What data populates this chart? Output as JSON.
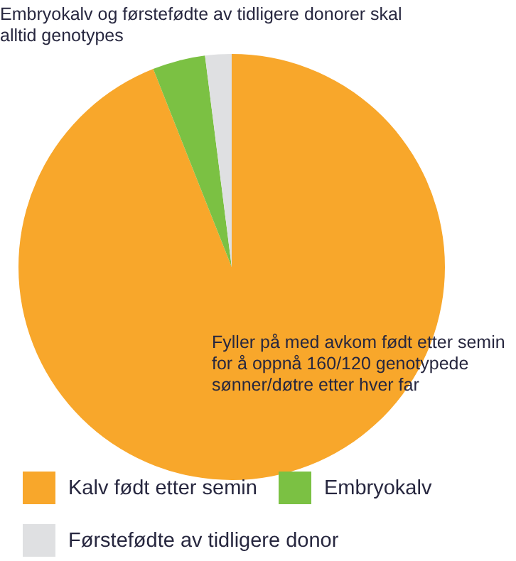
{
  "chart_data": {
    "type": "pie",
    "categories": [
      "Kalv født etter semin",
      "Embryokalv",
      "Førstefødte av tidligere donor"
    ],
    "values": [
      94,
      4,
      2
    ],
    "colors": [
      "#f8a72b",
      "#7bc143",
      "#dfe0e2"
    ],
    "legend": "bottom",
    "annotations": [
      "Embryokalv og førstefødte av tidligere donorer skal alltid genotypes",
      "Fyller på med avkom født etter semin for å oppnå 160/120 genotypede sønner/døtre etter hver far"
    ]
  }
}
